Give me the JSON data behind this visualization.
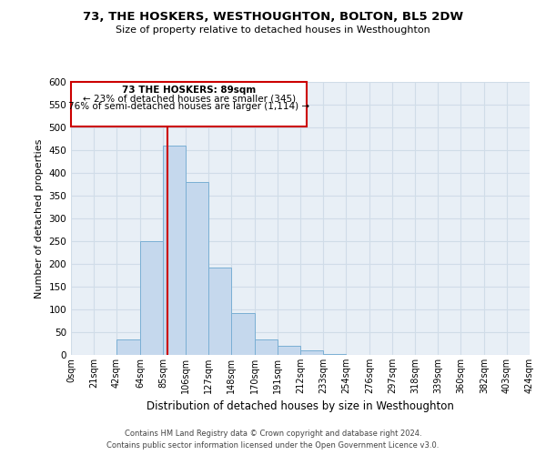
{
  "title": "73, THE HOSKERS, WESTHOUGHTON, BOLTON, BL5 2DW",
  "subtitle": "Size of property relative to detached houses in Westhoughton",
  "xlabel": "Distribution of detached houses by size in Westhoughton",
  "ylabel": "Number of detached properties",
  "bin_edges": [
    0,
    21,
    42,
    64,
    85,
    106,
    127,
    148,
    170,
    191,
    212,
    233,
    254,
    276,
    297,
    318,
    339,
    360,
    382,
    403,
    424
  ],
  "bin_labels": [
    "0sqm",
    "21sqm",
    "42sqm",
    "64sqm",
    "85sqm",
    "106sqm",
    "127sqm",
    "148sqm",
    "170sqm",
    "191sqm",
    "212sqm",
    "233sqm",
    "254sqm",
    "276sqm",
    "297sqm",
    "318sqm",
    "339sqm",
    "360sqm",
    "382sqm",
    "403sqm",
    "424sqm"
  ],
  "bar_heights": [
    0,
    0,
    35,
    250,
    460,
    380,
    192,
    93,
    35,
    20,
    11,
    2,
    1,
    0,
    0,
    0,
    0,
    0,
    0,
    0
  ],
  "bar_color": "#c5d8ed",
  "bar_edge_color": "#7aafd4",
  "vline_x": 89,
  "vline_color": "#cc0000",
  "ylim": [
    0,
    600
  ],
  "yticks": [
    0,
    50,
    100,
    150,
    200,
    250,
    300,
    350,
    400,
    450,
    500,
    550,
    600
  ],
  "annotation_title": "73 THE HOSKERS: 89sqm",
  "annotation_line1": "← 23% of detached houses are smaller (345)",
  "annotation_line2": "76% of semi-detached houses are larger (1,114) →",
  "annotation_box_color": "#cc0000",
  "footnote1": "Contains HM Land Registry data © Crown copyright and database right 2024.",
  "footnote2": "Contains public sector information licensed under the Open Government Licence v3.0.",
  "grid_color": "#d0dce8",
  "background_color": "#e8eff6"
}
